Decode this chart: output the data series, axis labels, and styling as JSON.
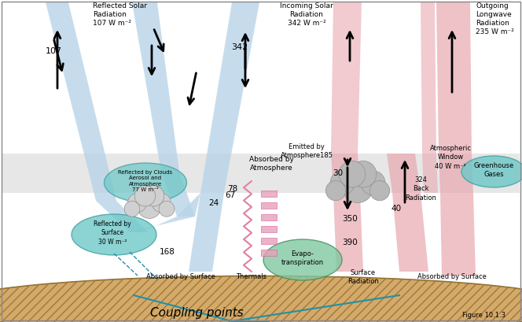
{
  "fig_width": 6.64,
  "fig_height": 4.09,
  "dpi": 100,
  "bg_color": "#ffffff",
  "border_color": "#888888",
  "blue_c": "#b8d4e8",
  "pink_c": "#e8a8b0",
  "atm_c": "#d0d0d0",
  "ground_c": "#d4aa6a",
  "ground_hatch_c": "#b08840",
  "teal_c": "#70c8c8",
  "teal_ec": "#40a0a0",
  "green_c": "#80c8a0",
  "green_ec": "#409060",
  "cloud_c": "#c0c0c0",
  "cloud_ec": "#909090",
  "arrow_c": "#111111",
  "teal_line_c": "#2090a8",
  "pink_zigzag_c": "#e080a0",
  "pink_dash_c": "#e8a0b8",
  "labels": {
    "reflected_solar": "Reflected Solar\nRadiation\n107 W m⁻²",
    "incoming_solar": "Incoming Solar\nRadiation\n342 W m⁻²",
    "outgoing_lw": "Outgoing\nLongwave\nRadiation\n235 W m⁻²",
    "reflected_clouds": "Reflected by Clouds\nAerosol and\nAtmosphere\n77 W m⁻²",
    "atm_window": "Atmospheric\nWindow\n40 W m⁻²",
    "greenhouse": "Greenhouse\nGases",
    "emitted_atm": "Emitted by\nAtmosphere185",
    "absorbed_atm": "Absorbed by\nAtmosphere",
    "reflected_surface": "Reflected by\nSurface\n30 W m⁻²",
    "absorbed_surface_left": "Absorbed by Surface",
    "thermals": "Thermals",
    "evapo": "Evapo-\ntranspiration",
    "surface_radiation": "Surface\nRadiation",
    "absorbed_surface_right": "Absorbed by Surface",
    "back_radiation": "324\nBack\nRadiation",
    "coupling": "Coupling points",
    "figure": "Figure 10.1.3"
  },
  "nums": {
    "n107": "107",
    "n342": "342",
    "n67": "67",
    "n24": "24",
    "n78": "78",
    "n168": "168",
    "n30": "30",
    "n350": "350",
    "n390": "390",
    "n40": "40"
  }
}
